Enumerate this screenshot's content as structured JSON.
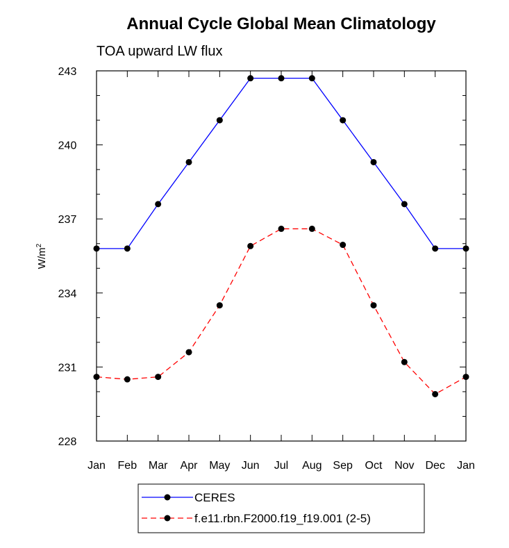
{
  "chart_data": {
    "type": "line",
    "title": "Annual Cycle Global Mean Climatology",
    "subtitle": "TOA upward LW flux",
    "xlabel": "",
    "ylabel": "W/m",
    "ylabel_superscript": "2",
    "categories": [
      "Jan",
      "Feb",
      "Mar",
      "Apr",
      "May",
      "Jun",
      "Jul",
      "Aug",
      "Sep",
      "Oct",
      "Nov",
      "Dec",
      "Jan"
    ],
    "ylim": [
      228,
      243
    ],
    "yticks": [
      228,
      231,
      234,
      237,
      240,
      243
    ],
    "series": [
      {
        "name": "CERES",
        "color": "#0000ff",
        "dash": "solid",
        "values": [
          235.8,
          235.8,
          237.6,
          239.3,
          241.0,
          242.7,
          242.7,
          242.7,
          241.0,
          239.3,
          237.6,
          235.8,
          235.8
        ]
      },
      {
        "name": "f.e11.rbn.F2000.f19_f19.001 (2-5)",
        "color": "#ff0000",
        "dash": "dashed",
        "values": [
          230.6,
          230.5,
          230.6,
          231.6,
          233.5,
          235.9,
          236.6,
          236.6,
          235.95,
          233.5,
          231.2,
          229.9,
          230.6
        ]
      }
    ]
  }
}
